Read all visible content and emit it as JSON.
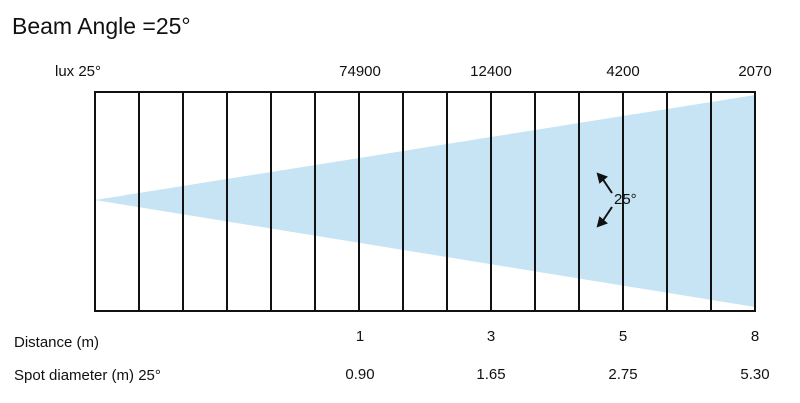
{
  "title": "Beam Angle =25°",
  "lux": {
    "label": "lux 25°",
    "values": [
      "74900",
      "12400",
      "4200",
      "2070"
    ]
  },
  "beam": {
    "angle_label": "25°"
  },
  "distance": {
    "label": "Distance (m)",
    "values": [
      "1",
      "3",
      "5",
      "8"
    ]
  },
  "spot": {
    "label": "Spot diameter (m) 25°",
    "values": [
      "0.90",
      "1.65",
      "2.75",
      "5.30"
    ]
  }
}
